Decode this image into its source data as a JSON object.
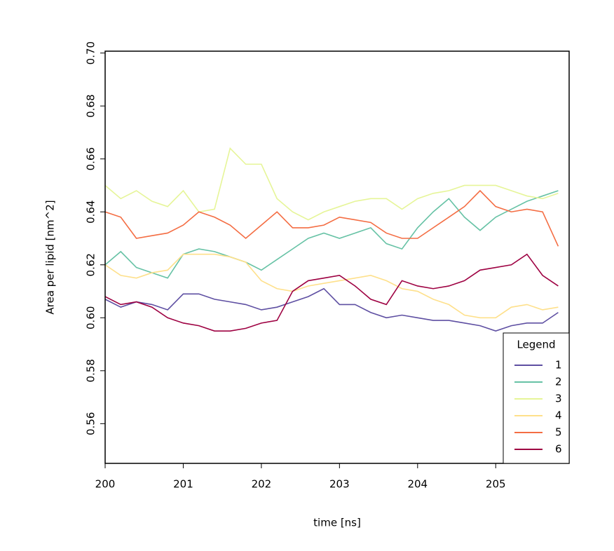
{
  "chart_data": {
    "type": "line",
    "x_label": "time [ns]",
    "y_label": "Area per lipid [nm^2]",
    "x": [
      200,
      200.2,
      200.4,
      200.6,
      200.8,
      201,
      201.2,
      201.4,
      201.6,
      201.8,
      202,
      202.2,
      202.4,
      202.6,
      202.8,
      203,
      203.2,
      203.4,
      203.6,
      203.8,
      204,
      204.2,
      204.4,
      204.6,
      204.8,
      205,
      205.2,
      205.4,
      205.6,
      205.8
    ],
    "series": [
      {
        "name": "1",
        "color": "#5E4FA2",
        "values": [
          0.607,
          0.604,
          0.606,
          0.605,
          0.603,
          0.609,
          0.609,
          0.607,
          0.606,
          0.605,
          0.603,
          0.604,
          0.606,
          0.608,
          0.611,
          0.605,
          0.605,
          0.602,
          0.6,
          0.601,
          0.6,
          0.599,
          0.599,
          0.598,
          0.597,
          0.595,
          0.597,
          0.598,
          0.598,
          0.602
        ]
      },
      {
        "name": "2",
        "color": "#66C2A5",
        "values": [
          0.62,
          0.625,
          0.619,
          0.617,
          0.615,
          0.624,
          0.626,
          0.625,
          0.623,
          0.621,
          0.618,
          0.622,
          0.626,
          0.63,
          0.632,
          0.63,
          0.632,
          0.634,
          0.628,
          0.626,
          0.634,
          0.64,
          0.645,
          0.638,
          0.633,
          0.638,
          0.641,
          0.644,
          0.646,
          0.648
        ]
      },
      {
        "name": "3",
        "color": "#E6F598",
        "values": [
          0.65,
          0.645,
          0.648,
          0.644,
          0.642,
          0.648,
          0.64,
          0.641,
          0.664,
          0.658,
          0.658,
          0.645,
          0.64,
          0.637,
          0.64,
          0.642,
          0.644,
          0.645,
          0.645,
          0.641,
          0.645,
          0.647,
          0.648,
          0.65,
          0.65,
          0.65,
          0.648,
          0.646,
          0.645,
          0.647
        ]
      },
      {
        "name": "4",
        "color": "#FEE08B",
        "values": [
          0.62,
          0.616,
          0.615,
          0.617,
          0.618,
          0.624,
          0.624,
          0.624,
          0.623,
          0.621,
          0.614,
          0.611,
          0.61,
          0.612,
          0.613,
          0.614,
          0.615,
          0.616,
          0.614,
          0.611,
          0.61,
          0.607,
          0.605,
          0.601,
          0.6,
          0.6,
          0.604,
          0.605,
          0.603,
          0.604
        ]
      },
      {
        "name": "5",
        "color": "#F46D43",
        "values": [
          0.64,
          0.638,
          0.63,
          0.631,
          0.632,
          0.635,
          0.64,
          0.638,
          0.635,
          0.63,
          0.635,
          0.64,
          0.634,
          0.634,
          0.635,
          0.638,
          0.637,
          0.636,
          0.632,
          0.63,
          0.63,
          0.634,
          0.638,
          0.642,
          0.648,
          0.642,
          0.64,
          0.641,
          0.64,
          0.627
        ]
      },
      {
        "name": "6",
        "color": "#9E0142",
        "values": [
          0.608,
          0.605,
          0.606,
          0.604,
          0.6,
          0.598,
          0.597,
          0.595,
          0.595,
          0.596,
          0.598,
          0.599,
          0.61,
          0.614,
          0.615,
          0.616,
          0.612,
          0.607,
          0.605,
          0.614,
          0.612,
          0.611,
          0.612,
          0.614,
          0.618,
          0.619,
          0.62,
          0.624,
          0.616,
          0.612
        ]
      }
    ],
    "xlim": [
      200,
      205.94
    ],
    "ylim": [
      0.545,
      0.7007
    ],
    "xticks": [
      200,
      201,
      202,
      203,
      204,
      205
    ],
    "yticks": [
      0.56,
      0.58,
      {
        "value": 0.6,
        "label": "0.60"
      },
      0.62,
      0.64,
      0.66,
      0.68,
      {
        "value": 0.7,
        "label": "0.70"
      }
    ],
    "legend_title": "Legend",
    "legend_position": "bottom-right"
  }
}
